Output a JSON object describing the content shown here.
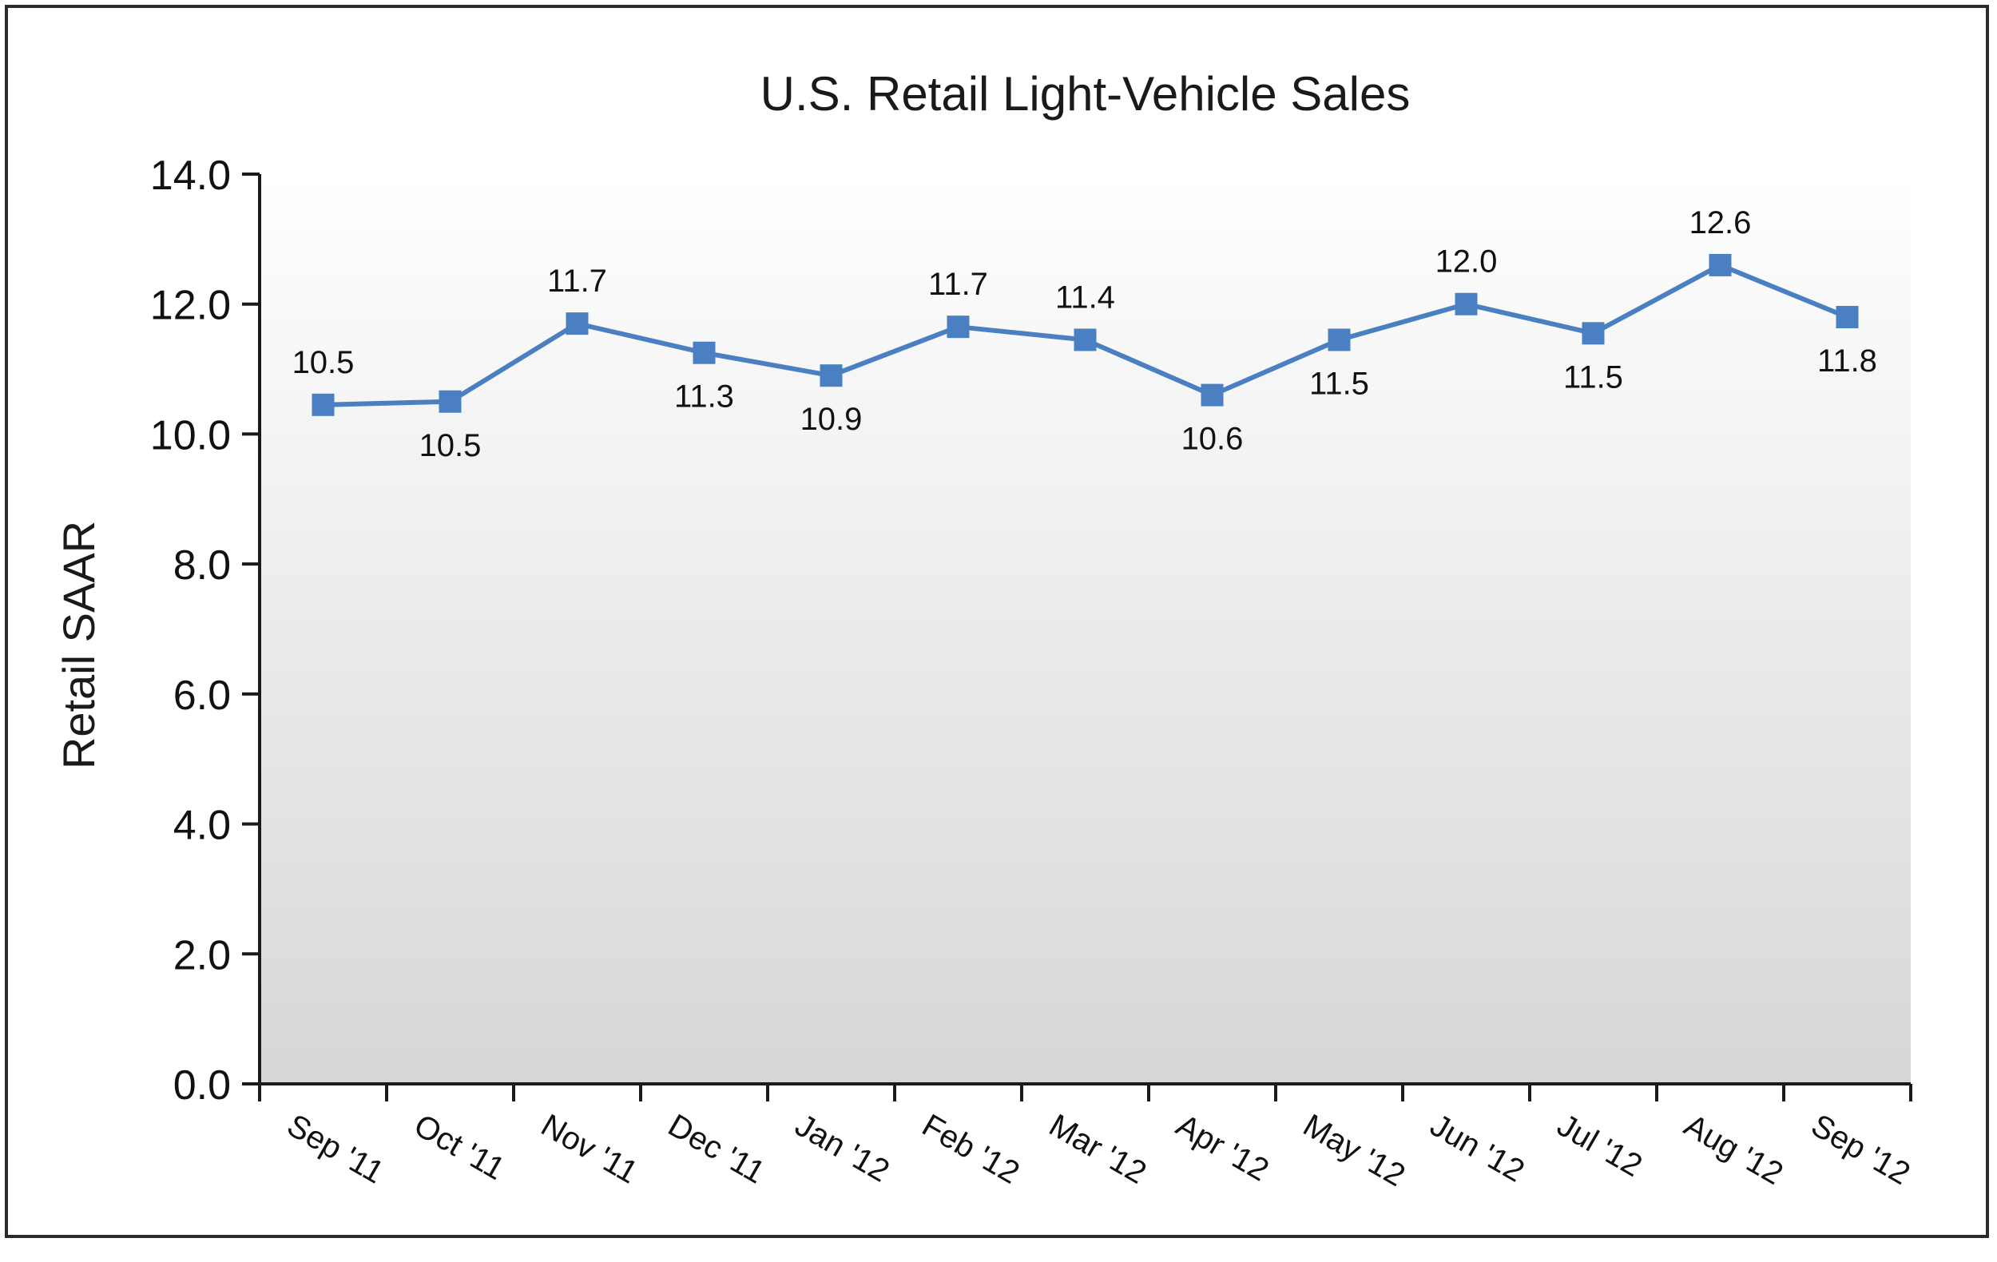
{
  "chart_data": {
    "type": "line",
    "title": "U.S. Retail Light-Vehicle Sales",
    "xlabel": "",
    "ylabel": "Retail SAAR",
    "ylim": [
      0,
      14
    ],
    "y_ticks": [
      "0.0",
      "2.0",
      "4.0",
      "6.0",
      "8.0",
      "10.0",
      "12.0",
      "14.0"
    ],
    "categories": [
      "Sep '11",
      "Oct '11",
      "Nov '11",
      "Dec '11",
      "Jan '12",
      "Feb '12",
      "Mar '12",
      "Apr '12",
      "May '12",
      "Jun '12",
      "Jul '12",
      "Aug '12",
      "Sep '12"
    ],
    "series": [
      {
        "values": [
          10.45,
          10.5,
          11.7,
          11.25,
          10.9,
          11.65,
          11.45,
          10.6,
          11.45,
          12.0,
          11.55,
          12.6,
          11.8
        ],
        "data_labels": [
          "10.5",
          "10.5",
          "11.7",
          "11.3",
          "10.9",
          "11.7",
          "11.4",
          "10.6",
          "11.5",
          "12.0",
          "11.5",
          "12.6",
          "11.8"
        ],
        "label_positions": [
          "above",
          "below",
          "above",
          "below",
          "below",
          "above",
          "above",
          "below",
          "below",
          "above",
          "below",
          "above",
          "below"
        ],
        "color": "#4a7fc1",
        "marker": "square"
      }
    ],
    "legend": "none",
    "grid": false,
    "plot_background": "gradient white to light gray"
  }
}
